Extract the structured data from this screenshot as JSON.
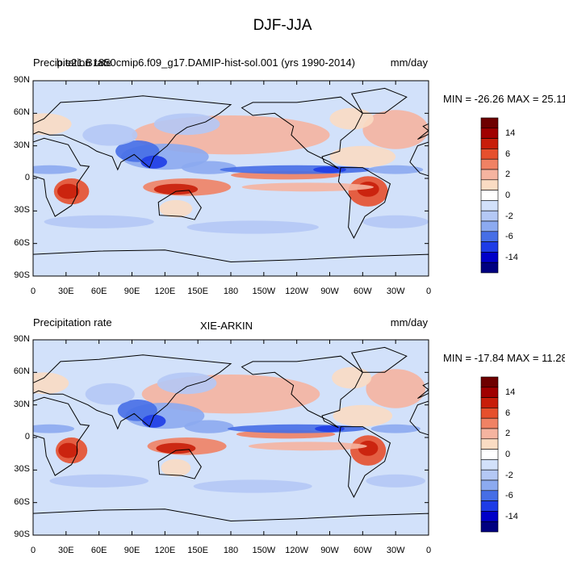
{
  "main_title": "DJF-JJA",
  "colors": {
    "scale": [
      "#000080",
      "#0000c8",
      "#1e3ce6",
      "#466ee6",
      "#8caaf0",
      "#b4c8f5",
      "#d2e1fa",
      "#ffffff",
      "#fadcc3",
      "#f5b4a0",
      "#f08264",
      "#e6502d",
      "#c81e0a",
      "#a00000",
      "#6e0000"
    ]
  },
  "panels": [
    {
      "title_left": "Precipitation rate",
      "title_center": "b.e21.B1850cmip6.f09_g17.DAMIP-hist-sol.001 (yrs 1990-2014)",
      "title_right": "mm/day",
      "min_max": "MIN = -26.26 MAX =  25.11",
      "lat_labels": [
        "90N",
        "60N",
        "30N",
        "0",
        "30S",
        "60S",
        "90S"
      ],
      "lon_labels": [
        "0",
        "30E",
        "60E",
        "90E",
        "120E",
        "150E",
        "180",
        "150W",
        "120W",
        "90W",
        "60W",
        "30W",
        "0"
      ],
      "colorbar_labels": [
        "14",
        "6",
        "2",
        "0",
        "-2",
        "-6",
        "-14"
      ]
    },
    {
      "title_left": "Precipitation rate",
      "title_center": "XIE-ARKIN",
      "title_right": "mm/day",
      "min_max": "MIN = -17.84 MAX =  11.28",
      "lat_labels": [
        "90N",
        "60N",
        "30N",
        "0",
        "30S",
        "60S",
        "90S"
      ],
      "lon_labels": [
        "0",
        "30E",
        "60E",
        "90E",
        "120E",
        "150E",
        "180",
        "150W",
        "120W",
        "90W",
        "60W",
        "30W",
        "0"
      ],
      "colorbar_labels": [
        "14",
        "6",
        "2",
        "0",
        "-2",
        "-6",
        "-14"
      ]
    }
  ]
}
